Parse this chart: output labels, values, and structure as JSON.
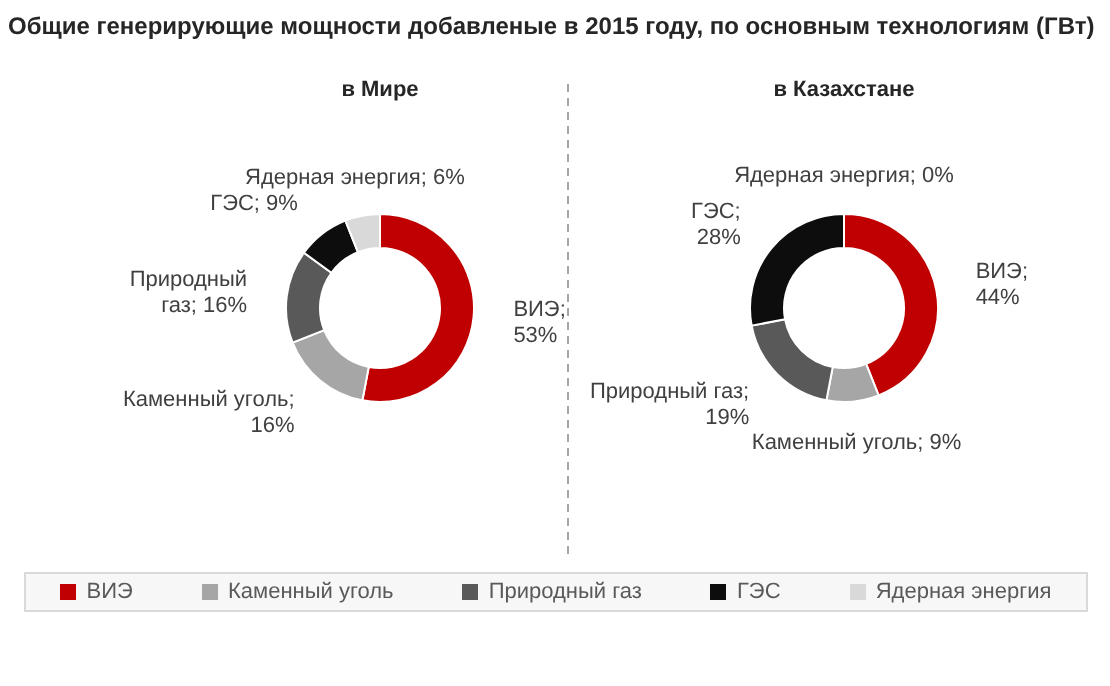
{
  "chart_data": [
    {
      "type": "donut",
      "title": "Общие генерирующие мощности добавленые в 2015 году, по основным технологиям (ГВт)",
      "subtitle": "в Мире",
      "categories": [
        "ВИЭ",
        "Каменный уголь",
        "Природный газ",
        "ГЭС",
        "Ядерная энергия"
      ],
      "values": [
        53,
        16,
        16,
        9,
        6
      ],
      "colors": [
        "#c00000",
        "#a6a6a6",
        "#595959",
        "#0d0d0d",
        "#d9d9d9"
      ],
      "value_labels": [
        "ВИЭ;\n53%",
        "Каменный уголь;\n16%",
        "Природный\nгаз; 16%",
        "ГЭС; 9%",
        "Ядерная энергия; 6%"
      ],
      "legend": "bottom"
    },
    {
      "type": "donut",
      "subtitle": "в Казахстане",
      "categories": [
        null,
        null,
        null,
        null,
        null
      ],
      "values": [
        44,
        9,
        19,
        28,
        0
      ],
      "colors": [
        "#c00000",
        "#a6a6a6",
        "#595959",
        "#0d0d0d",
        "#d9d9d9"
      ],
      "value_labels": [
        "ВИЭ;\n44%",
        "Каменный уголь; 9%",
        "Природный газ;\n19%",
        "ГЭС;\n28%",
        "Ядерная энергия; 0%"
      ]
    }
  ]
}
